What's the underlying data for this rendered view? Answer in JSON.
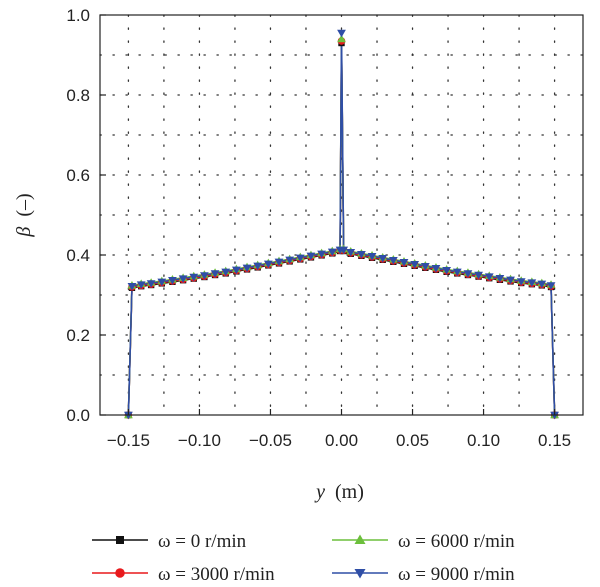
{
  "chart_data": {
    "type": "line",
    "xlabel_var": "y",
    "xlabel_unit": "(m)",
    "ylabel_var": "β",
    "ylabel_unit": "(–)",
    "xlim": [
      -0.17,
      0.17
    ],
    "ylim": [
      0.0,
      1.0
    ],
    "xticks": [
      -0.15,
      -0.1,
      -0.05,
      0.0,
      0.05,
      0.1,
      0.15
    ],
    "xtick_labels": [
      "−0.15",
      "−0.10",
      "−0.05",
      "0.00",
      "0.05",
      "0.10",
      "0.15"
    ],
    "yticks": [
      0.0,
      0.2,
      0.4,
      0.6,
      0.8,
      1.0
    ],
    "ytick_labels": [
      "0.0",
      "0.2",
      "0.4",
      "0.6",
      "0.8",
      "1.0"
    ],
    "grid": "dotted",
    "legend_placement": "bottom",
    "x": [
      -0.15,
      -0.1475,
      -0.141,
      -0.134,
      -0.1265,
      -0.119,
      -0.1115,
      -0.104,
      -0.0965,
      -0.089,
      -0.0815,
      -0.074,
      -0.0665,
      -0.059,
      -0.0515,
      -0.044,
      -0.0365,
      -0.029,
      -0.0215,
      -0.014,
      -0.0065,
      -0.001,
      0.0,
      0.0015,
      0.0065,
      0.014,
      0.0215,
      0.029,
      0.0365,
      0.044,
      0.0515,
      0.059,
      0.0665,
      0.074,
      0.0815,
      0.089,
      0.0965,
      0.104,
      0.1115,
      0.119,
      0.1265,
      0.134,
      0.141,
      0.1475,
      0.15
    ],
    "series": [
      {
        "name": "ω = 0 r/min",
        "color": "#111111",
        "marker": "square",
        "values": [
          0.0,
          0.318,
          0.322,
          0.325,
          0.329,
          0.333,
          0.337,
          0.341,
          0.345,
          0.35,
          0.354,
          0.359,
          0.364,
          0.369,
          0.374,
          0.379,
          0.384,
          0.389,
          0.394,
          0.399,
          0.404,
          0.41,
          0.93,
          0.41,
          0.403,
          0.398,
          0.393,
          0.388,
          0.383,
          0.378,
          0.373,
          0.368,
          0.363,
          0.358,
          0.354,
          0.35,
          0.346,
          0.342,
          0.338,
          0.334,
          0.33,
          0.327,
          0.324,
          0.32,
          0.0
        ]
      },
      {
        "name": "ω = 3000 r/min",
        "color": "#e8191c",
        "marker": "circle",
        "values": [
          0.0,
          0.32,
          0.324,
          0.327,
          0.331,
          0.335,
          0.339,
          0.343,
          0.347,
          0.352,
          0.356,
          0.361,
          0.366,
          0.371,
          0.376,
          0.381,
          0.386,
          0.391,
          0.396,
          0.401,
          0.406,
          0.412,
          0.935,
          0.412,
          0.405,
          0.4,
          0.395,
          0.39,
          0.385,
          0.38,
          0.375,
          0.37,
          0.365,
          0.36,
          0.356,
          0.352,
          0.348,
          0.344,
          0.34,
          0.336,
          0.332,
          0.329,
          0.326,
          0.322,
          0.0
        ]
      },
      {
        "name": "ω = 6000 r/min",
        "color": "#6cbf3c",
        "marker": "triangle-up",
        "values": [
          0.0,
          0.324,
          0.328,
          0.331,
          0.335,
          0.339,
          0.343,
          0.347,
          0.351,
          0.356,
          0.36,
          0.365,
          0.37,
          0.375,
          0.38,
          0.385,
          0.39,
          0.395,
          0.4,
          0.405,
          0.41,
          0.415,
          0.94,
          0.415,
          0.409,
          0.404,
          0.399,
          0.394,
          0.389,
          0.384,
          0.379,
          0.374,
          0.369,
          0.364,
          0.36,
          0.356,
          0.352,
          0.348,
          0.344,
          0.34,
          0.336,
          0.333,
          0.33,
          0.326,
          0.0
        ]
      },
      {
        "name": "ω = 9000 r/min",
        "color": "#2f4ea6",
        "marker": "triangle-down",
        "values": [
          0.0,
          0.322,
          0.326,
          0.329,
          0.333,
          0.337,
          0.341,
          0.345,
          0.349,
          0.354,
          0.358,
          0.363,
          0.368,
          0.373,
          0.378,
          0.383,
          0.388,
          0.393,
          0.398,
          0.403,
          0.408,
          0.413,
          0.955,
          0.413,
          0.407,
          0.402,
          0.397,
          0.392,
          0.387,
          0.382,
          0.377,
          0.372,
          0.367,
          0.362,
          0.358,
          0.354,
          0.35,
          0.346,
          0.342,
          0.338,
          0.334,
          0.331,
          0.328,
          0.324,
          0.0
        ]
      }
    ]
  }
}
